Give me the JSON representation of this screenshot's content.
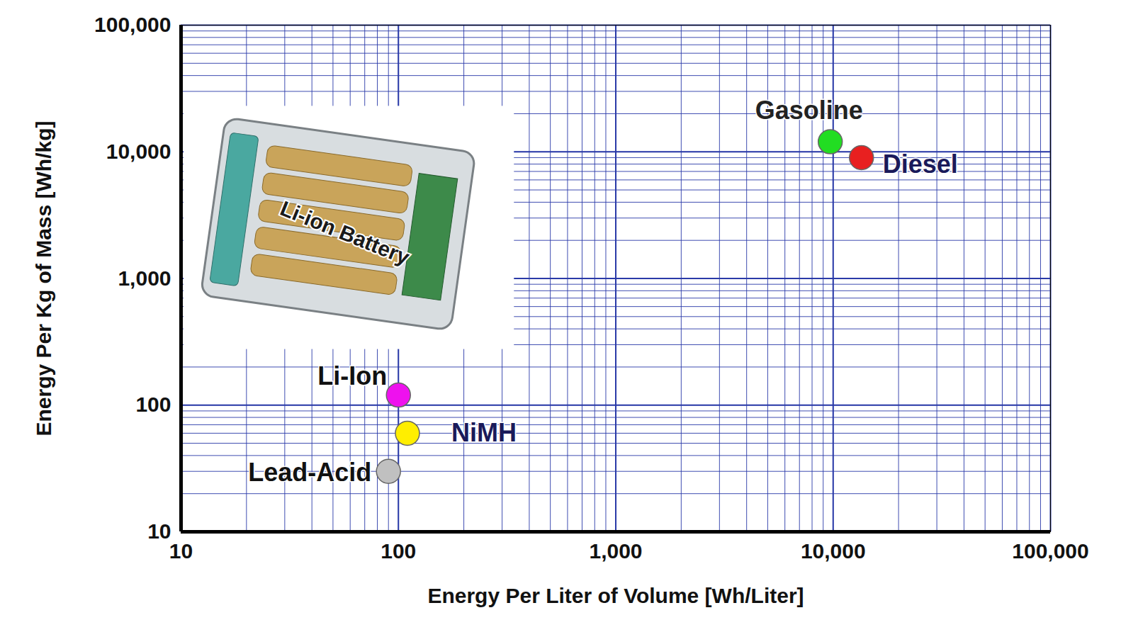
{
  "chart_data": {
    "type": "scatter",
    "xlabel": "Energy Per Liter of Volume [Wh/Liter]",
    "ylabel": "Energy Per Kg of Mass [Wh/kg]",
    "log": true,
    "grid": true,
    "xlim": [
      10,
      100000
    ],
    "ylim": [
      10,
      100000
    ],
    "xticks": [
      10,
      100,
      {
        "value": 1000,
        "label": "1,000"
      },
      {
        "value": 10000,
        "label": "10,000"
      },
      {
        "value": 100000,
        "label": "100,000"
      }
    ],
    "yticks": [
      10,
      100,
      {
        "value": 1000,
        "label": "1,000"
      },
      {
        "value": 10000,
        "label": "10,000"
      },
      {
        "value": 100000,
        "label": "100,000"
      }
    ],
    "series": [
      {
        "name": "Gasoline",
        "color": "#22dd22",
        "x": [
          9700
        ],
        "values": [
          12000
        ]
      },
      {
        "name": "Diesel",
        "color": "#e82020",
        "x": [
          13500
        ],
        "values": [
          9000
        ]
      },
      {
        "name": "Li-Ion",
        "color": "#ee11ee",
        "x": [
          100
        ],
        "values": [
          120
        ]
      },
      {
        "name": "NiMH",
        "color": "#ffee00",
        "x": [
          110
        ],
        "values": [
          60
        ]
      },
      {
        "name": "Lead-Acid",
        "color": "#c0c0c0",
        "x": [
          90
        ],
        "values": [
          30
        ]
      }
    ],
    "annotations": [
      "Li-ion Battery"
    ]
  }
}
